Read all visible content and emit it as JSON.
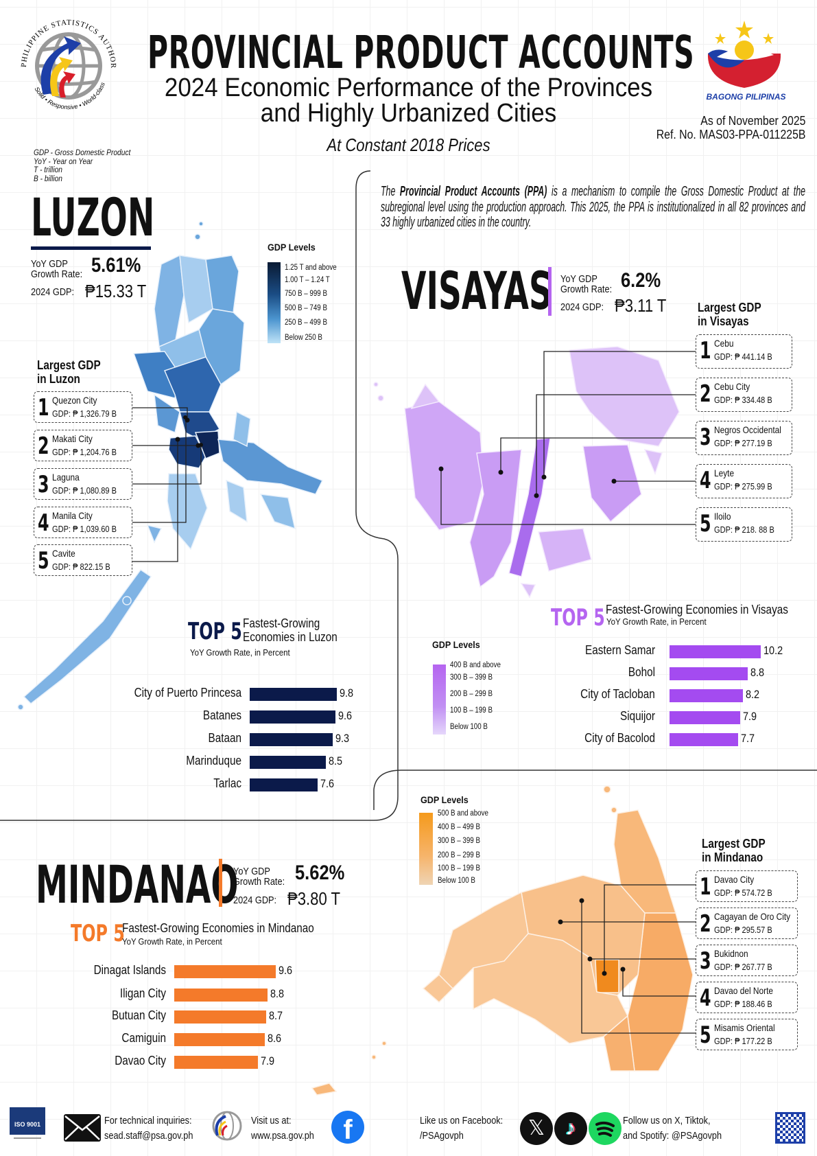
{
  "header": {
    "title": "PROVINCIAL PRODUCT ACCOUNTS",
    "subtitle_line1": "2024 Economic Performance of the Provinces",
    "subtitle_line2": "and Highly Urbanized Cities",
    "prices": "At Constant 2018 Prices",
    "as_of": "As of November 2025",
    "ref_no": "Ref. No. MAS03-PPA-011225B",
    "psa_logo_text": "PHILIPPINE STATISTICS AUTHORITY",
    "psa_motto": "Solid • Responsive • World-class",
    "bagong_pilipinas": "BAGONG PILIPINAS"
  },
  "abbreviations": [
    "GDP - Gross Domestic Product",
    "YoY - Year on Year",
    "T - trillion",
    "B - billion"
  ],
  "intro": {
    "lead": "The ",
    "bold": "Provincial Product Accounts (PPA)",
    "rest": " is a mechanism to compile the Gross Domestic Product at the subregional level using the production approach. This 2025, the PPA is institutionalized in all 82 provinces and 33 highly urbanized cities in the country."
  },
  "regions": {
    "luzon": {
      "name": "LUZON",
      "color": "#0b1a4a",
      "yoy_label1": "YoY GDP",
      "yoy_label2": "Growth Rate:",
      "growth": "5.61%",
      "gdp_label": "2024 GDP:",
      "gdp": "₱15.33 T",
      "legend": {
        "title": "GDP Levels",
        "levels": [
          "1.25 T and above",
          "1.00 T – 1.24 T",
          "750 B – 999 B",
          "500 B – 749 B",
          "250 B – 499 B",
          "Below 250 B"
        ]
      },
      "largest": {
        "title1": "Largest GDP",
        "title2": "in Luzon",
        "items": [
          {
            "rank": "1",
            "name": "Quezon City",
            "gdp": "GDP: ₱ 1,326.79 B"
          },
          {
            "rank": "2",
            "name": "Makati City",
            "gdp": "GDP: ₱ 1,204.76 B"
          },
          {
            "rank": "3",
            "name": "Laguna",
            "gdp": "GDP: ₱ 1,080.89 B"
          },
          {
            "rank": "4",
            "name": "Manila City",
            "gdp": "GDP: ₱ 1,039.60 B"
          },
          {
            "rank": "5",
            "name": "Cavite",
            "gdp": "GDP: ₱ 822.15 B"
          }
        ]
      },
      "top5": {
        "top": "TOP 5",
        "title1": "Fastest-Growing",
        "title2": "Economies in Luzon",
        "subtitle": "YoY Growth Rate, in Percent",
        "bar_color": "#0b1a4a",
        "items": [
          {
            "name": "City of Puerto Princesa",
            "value": 9.8
          },
          {
            "name": "Batanes",
            "value": 9.6
          },
          {
            "name": "Bataan",
            "value": 9.3
          },
          {
            "name": "Marinduque",
            "value": 8.5
          },
          {
            "name": "Tarlac",
            "value": 7.6
          }
        ]
      }
    },
    "visayas": {
      "name": "VISAYAS",
      "color": "#b565f0",
      "yoy_label1": "YoY GDP",
      "yoy_label2": "Growth Rate:",
      "growth": "6.2%",
      "gdp_label": "2024 GDP:",
      "gdp": "₱3.11 T",
      "legend": {
        "title": "GDP Levels",
        "levels": [
          "400 B and above",
          "300 B – 399 B",
          "200 B – 299 B",
          "100 B – 199 B",
          "Below 100 B"
        ]
      },
      "largest": {
        "title1": "Largest GDP",
        "title2": "in Visayas",
        "items": [
          {
            "rank": "1",
            "name": "Cebu",
            "gdp": "GDP: ₱ 441.14 B"
          },
          {
            "rank": "2",
            "name": "Cebu City",
            "gdp": "GDP: ₱ 334.48 B"
          },
          {
            "rank": "3",
            "name": "Negros Occidental",
            "gdp": "GDP: ₱ 277.19 B"
          },
          {
            "rank": "4",
            "name": "Leyte",
            "gdp": "GDP: ₱ 275.99 B"
          },
          {
            "rank": "5",
            "name": "Iloilo",
            "gdp": "GDP: ₱ 218. 88 B"
          }
        ]
      },
      "top5": {
        "top": "TOP 5",
        "title1": "Fastest-Growing Economies in Visayas",
        "subtitle": "YoY Growth Rate, in Percent",
        "bar_color": "#a44bf0",
        "items": [
          {
            "name": "Eastern Samar",
            "value": 10.2
          },
          {
            "name": "Bohol",
            "value": 8.8
          },
          {
            "name": "City of Tacloban",
            "value": 8.2
          },
          {
            "name": "Siquijor",
            "value": 7.9
          },
          {
            "name": "City of Bacolod",
            "value": 7.7
          }
        ]
      }
    },
    "mindanao": {
      "name": "MINDANAO",
      "color": "#f47a2a",
      "yoy_label1": "YoY GDP",
      "yoy_label2": "Growth Rate:",
      "growth": "5.62%",
      "gdp_label": "2024 GDP:",
      "gdp": "₱3.80 T",
      "legend": {
        "title": "GDP Levels",
        "levels": [
          "500 B and above",
          "400 B – 499 B",
          "300 B – 399 B",
          "200 B – 299 B",
          "100 B – 199 B",
          "Below 100 B"
        ]
      },
      "largest": {
        "title1": "Largest GDP",
        "title2": "in Mindanao",
        "items": [
          {
            "rank": "1",
            "name": "Davao City",
            "gdp": "GDP: ₱ 574.72 B"
          },
          {
            "rank": "2",
            "name": "Cagayan de Oro City",
            "gdp": "GDP: ₱ 295.57 B"
          },
          {
            "rank": "3",
            "name": "Bukidnon",
            "gdp": "GDP: ₱ 267.77 B"
          },
          {
            "rank": "4",
            "name": "Davao del Norte",
            "gdp": "GDP: ₱ 188.46 B"
          },
          {
            "rank": "5",
            "name": "Misamis Oriental",
            "gdp": "GDP: ₱ 177.22 B"
          }
        ]
      },
      "top5": {
        "top": "TOP 5",
        "title1": "Fastest-Growing Economies in Mindanao",
        "subtitle": "YoY Growth Rate, in Percent",
        "bar_color": "#f47a2a",
        "items": [
          {
            "name": "Dinagat Islands",
            "value": 9.6
          },
          {
            "name": "Iligan City",
            "value": 8.8
          },
          {
            "name": "Butuan City",
            "value": 8.7
          },
          {
            "name": "Camiguin",
            "value": 8.6
          },
          {
            "name": "Davao City",
            "value": 7.9
          }
        ]
      }
    }
  },
  "footer": {
    "iso": "ISO 9001",
    "email_label": "For technical inquiries:",
    "email": "sead.staff@psa.gov.ph",
    "web_label": "Visit us at:",
    "web": "www.psa.gov.ph",
    "fb_label": "Like us on Facebook:",
    "fb": "/PSAgovph",
    "social_label": "Follow us on X, Tiktok,",
    "social": "and Spotify: @PSAgovph"
  }
}
